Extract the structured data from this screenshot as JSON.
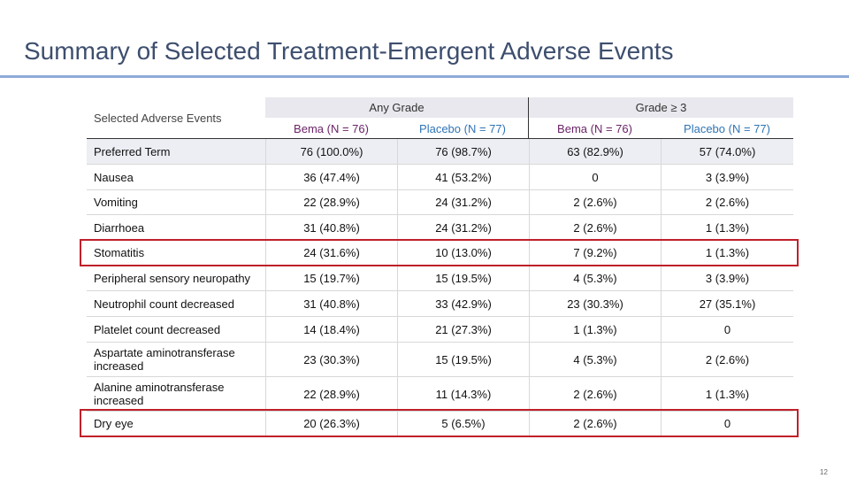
{
  "header": {
    "title": "Summary of Selected Treatment-Emergent Adverse Events"
  },
  "table": {
    "row_header": "Selected Adverse Events",
    "groups": [
      "Any Grade",
      "Grade ≥ 3"
    ],
    "columns": [
      "Bema (N = 76)",
      "Placebo (N = 77)",
      "Bema (N = 76)",
      "Placebo (N = 77)"
    ],
    "rows": [
      [
        "Preferred Term",
        "76 (100.0%)",
        "76 (98.7%)",
        "63 (82.9%)",
        "57 (74.0%)"
      ],
      [
        "Nausea",
        "36 (47.4%)",
        "41 (53.2%)",
        "0",
        "3 (3.9%)"
      ],
      [
        "Vomiting",
        "22 (28.9%)",
        "24 (31.2%)",
        "2 (2.6%)",
        "2 (2.6%)"
      ],
      [
        "Diarrhoea",
        "31 (40.8%)",
        "24 (31.2%)",
        "2 (2.6%)",
        "1 (1.3%)"
      ],
      [
        "Stomatitis",
        "24 (31.6%)",
        "10 (13.0%)",
        "7 (9.2%)",
        "1 (1.3%)"
      ],
      [
        "Peripheral sensory neuropathy",
        "15 (19.7%)",
        "15 (19.5%)",
        "4 (5.3%)",
        "3 (3.9%)"
      ],
      [
        "Neutrophil count decreased",
        "31 (40.8%)",
        "33 (42.9%)",
        "23 (30.3%)",
        "27 (35.1%)"
      ],
      [
        "Platelet count decreased",
        "14 (18.4%)",
        "21 (27.3%)",
        "1 (1.3%)",
        "0"
      ],
      [
        "Aspartate aminotransferase increased",
        "23 (30.3%)",
        "15 (19.5%)",
        "4 (5.3%)",
        "2 (2.6%)"
      ],
      [
        "Alanine aminotransferase increased",
        "22 (28.9%)",
        "11 (14.3%)",
        "2 (2.6%)",
        "1 (1.3%)"
      ],
      [
        "Dry eye",
        "20 (26.3%)",
        "5 (6.5%)",
        "2 (2.6%)",
        "0"
      ]
    ]
  },
  "footer": {
    "page_number": "12"
  }
}
